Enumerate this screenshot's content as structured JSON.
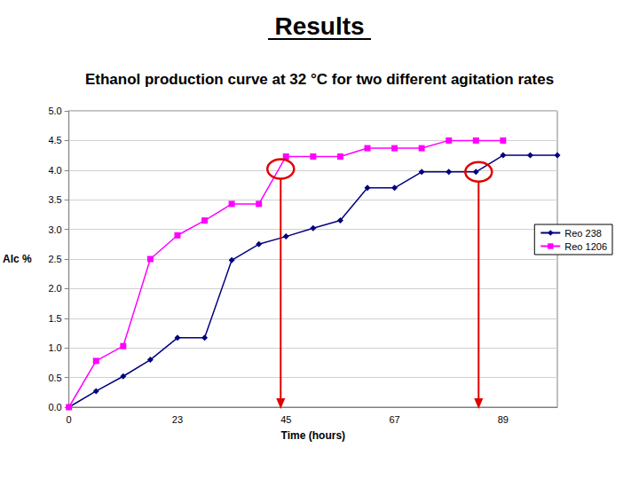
{
  "chart_data": {
    "type": "line",
    "title": "Results",
    "subtitle": "Ethanol production curve at 32 °C for two different agitation rates",
    "x_label": "Time (hours)",
    "y_label": "Alc %",
    "categories": [
      "0",
      null,
      null,
      null,
      "23",
      null,
      null,
      null,
      "45",
      null,
      null,
      null,
      "67",
      null,
      null,
      null,
      "89",
      null,
      null
    ],
    "series": [
      {
        "name": "Reo 238",
        "color": "#000080",
        "marker": "diamond",
        "line_style": "solid",
        "values": [
          0.0,
          0.27,
          0.52,
          0.8,
          1.17,
          1.17,
          2.48,
          2.75,
          2.88,
          3.02,
          3.15,
          3.7,
          3.7,
          3.97,
          3.97,
          3.97,
          4.25,
          4.25,
          4.25
        ]
      },
      {
        "name": "Reo 1206",
        "color": "#ff00ff",
        "marker": "square",
        "line_style": "solid",
        "values": [
          0.0,
          0.78,
          1.03,
          2.5,
          2.9,
          3.15,
          3.43,
          3.43,
          4.23,
          4.23,
          4.23,
          4.37,
          4.37,
          4.37,
          4.5,
          4.5,
          4.5,
          null,
          null
        ]
      }
    ],
    "ylim": [
      0,
      5
    ],
    "yticks": [
      {
        "value": 0,
        "label": "0.0"
      },
      0.5,
      {
        "value": 1,
        "label": "1.0"
      },
      1.5,
      {
        "value": 2,
        "label": "2.0"
      },
      2.5,
      {
        "value": 3,
        "label": "3.0"
      },
      3.5,
      {
        "value": 4,
        "label": "4.0"
      },
      4.5,
      {
        "value": 5,
        "label": "5.0"
      }
    ],
    "grid": true,
    "legend": "right"
  }
}
